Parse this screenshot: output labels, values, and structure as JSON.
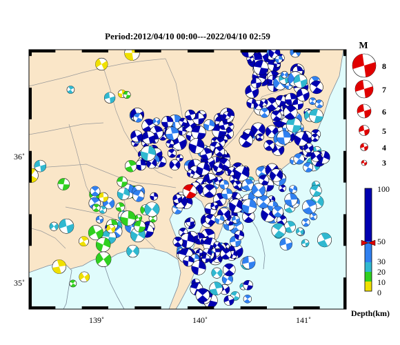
{
  "chart_data": {
    "type": "map",
    "title": "Period:2012/04/10 00:00---2022/04/10 02:59",
    "lon_range": [
      138.4,
      141.4
    ],
    "lat_range": [
      34.8,
      36.85
    ],
    "x_ticks": [
      {
        "value": 139,
        "label": "139˚"
      },
      {
        "value": 140,
        "label": "140˚"
      },
      {
        "value": 141,
        "label": "141˚"
      }
    ],
    "y_ticks": [
      {
        "value": 35,
        "label": "35˚"
      },
      {
        "value": 36,
        "label": "36˚"
      }
    ],
    "magnitude_legend": {
      "title": "M",
      "entries": [
        {
          "label": "8",
          "value": 8
        },
        {
          "label": "7",
          "value": 7
        },
        {
          "label": "6",
          "value": 6
        },
        {
          "label": "5",
          "value": 5
        },
        {
          "label": "4",
          "value": 4
        },
        {
          "label": "3",
          "value": 3
        }
      ]
    },
    "depth_legend": {
      "unit_label": "Depth(km)",
      "ticks": [
        "0",
        "10",
        "20",
        "30",
        "50",
        "100"
      ],
      "tick_values": [
        0,
        10,
        20,
        30,
        50,
        100
      ],
      "bands": [
        {
          "from": 0,
          "to": 10,
          "color": "#f0e000"
        },
        {
          "from": 10,
          "to": 20,
          "color": "#30d020"
        },
        {
          "from": 20,
          "to": 30,
          "color": "#30b8d0"
        },
        {
          "from": 30,
          "to": 50,
          "color": "#3080f0"
        },
        {
          "from": 50,
          "to": 100,
          "color": "#0000b0"
        }
      ],
      "marker_value": 45
    },
    "highlight_event": {
      "lon": 139.92,
      "lat": 35.73,
      "mag": 5.9,
      "color": "#e00000"
    }
  },
  "colors": {
    "land": "#fae6c8",
    "sea": "#e0fcfc",
    "border": "#888888",
    "coast": "#7a8a9a",
    "highlight": "#e00000"
  }
}
